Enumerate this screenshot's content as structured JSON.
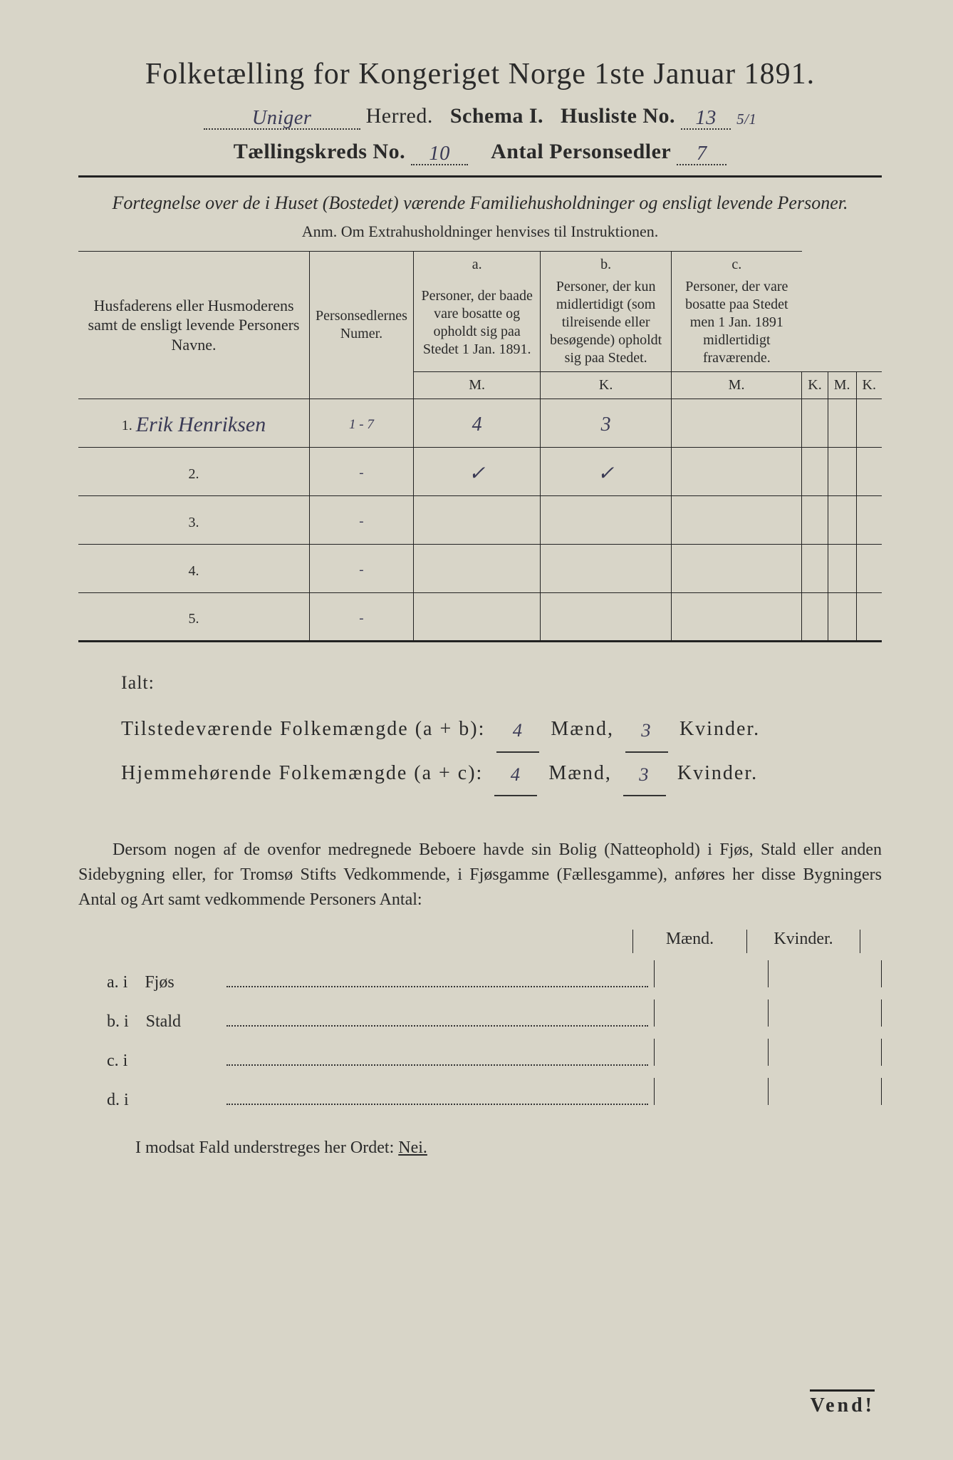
{
  "header": {
    "title": "Folketælling for Kongeriget Norge 1ste Januar 1891.",
    "herred_value": "Uniger",
    "herred_label": "Herred.",
    "schema_label": "Schema I.",
    "husliste_label": "Husliste No.",
    "husliste_value": "13",
    "husliste_marginal": "5/1",
    "kreds_label": "Tællingskreds No.",
    "kreds_value": "10",
    "antal_label": "Antal Personsedler",
    "antal_value": "7"
  },
  "subtitle": "Fortegnelse over de i Huset (Bostedet) værende Familiehusholdninger og ensligt levende Personer.",
  "anm": "Anm. Om Extrahusholdninger henvises til Instruktionen.",
  "table": {
    "col1_header": "Husfaderens eller Husmoderens samt de ensligt levende Personers Navne.",
    "col2_header": "Personsedlernes Numer.",
    "group_a_tag": "a.",
    "group_a_header": "Personer, der baade vare bosatte og opholdt sig paa Stedet 1 Jan. 1891.",
    "group_b_tag": "b.",
    "group_b_header": "Personer, der kun midlertidigt (som tilreisende eller besøgende) opholdt sig paa Stedet.",
    "group_c_tag": "c.",
    "group_c_header": "Personer, der vare bosatte paa Stedet men 1 Jan. 1891 midlertidigt fraværende.",
    "m_label": "M.",
    "k_label": "K.",
    "rows": [
      {
        "num": "1.",
        "name": "Erik Henriksen",
        "numer": "1 - 7",
        "a_m": "4",
        "a_k": "3",
        "b_m": "",
        "b_k": "",
        "c_m": "",
        "c_k": ""
      },
      {
        "num": "2.",
        "name": "",
        "numer": "-",
        "a_m": "✓",
        "a_k": "✓",
        "b_m": "",
        "b_k": "",
        "c_m": "",
        "c_k": ""
      },
      {
        "num": "3.",
        "name": "",
        "numer": "-",
        "a_m": "",
        "a_k": "",
        "b_m": "",
        "b_k": "",
        "c_m": "",
        "c_k": ""
      },
      {
        "num": "4.",
        "name": "",
        "numer": "-",
        "a_m": "",
        "a_k": "",
        "b_m": "",
        "b_k": "",
        "c_m": "",
        "c_k": ""
      },
      {
        "num": "5.",
        "name": "",
        "numer": "-",
        "a_m": "",
        "a_k": "",
        "b_m": "",
        "b_k": "",
        "c_m": "",
        "c_k": ""
      }
    ]
  },
  "totals": {
    "ialt": "Ialt:",
    "line1_label": "Tilstedeværende Folkemængde (a + b):",
    "line1_m": "4",
    "line1_k": "3",
    "line2_label": "Hjemmehørende Folkemængde (a + c):",
    "line2_m": "4",
    "line2_k": "3",
    "maend": "Mænd,",
    "kvinder": "Kvinder."
  },
  "paragraph": "Dersom nogen af de ovenfor medregnede Beboere havde sin Bolig (Natteophold) i Fjøs, Stald eller anden Sidebygning eller, for Tromsø Stifts Vedkommende, i Fjøsgamme (Fællesgamme), anføres her disse Bygningers Antal og Art samt vedkommende Personers Antal:",
  "buildings": {
    "maend": "Mænd.",
    "kvinder": "Kvinder.",
    "rows": [
      {
        "label": "a.  i",
        "name": "Fjøs"
      },
      {
        "label": "b.  i",
        "name": "Stald"
      },
      {
        "label": "c.  i",
        "name": ""
      },
      {
        "label": "d.  i",
        "name": ""
      }
    ]
  },
  "nei_line_pre": "I modsat Fald understreges her Ordet: ",
  "nei_word": "Nei.",
  "vend": "Vend!",
  "colors": {
    "background": "#d8d5c8",
    "text": "#2a2a2a",
    "handwriting": "#3a3a55",
    "border": "#222222"
  }
}
